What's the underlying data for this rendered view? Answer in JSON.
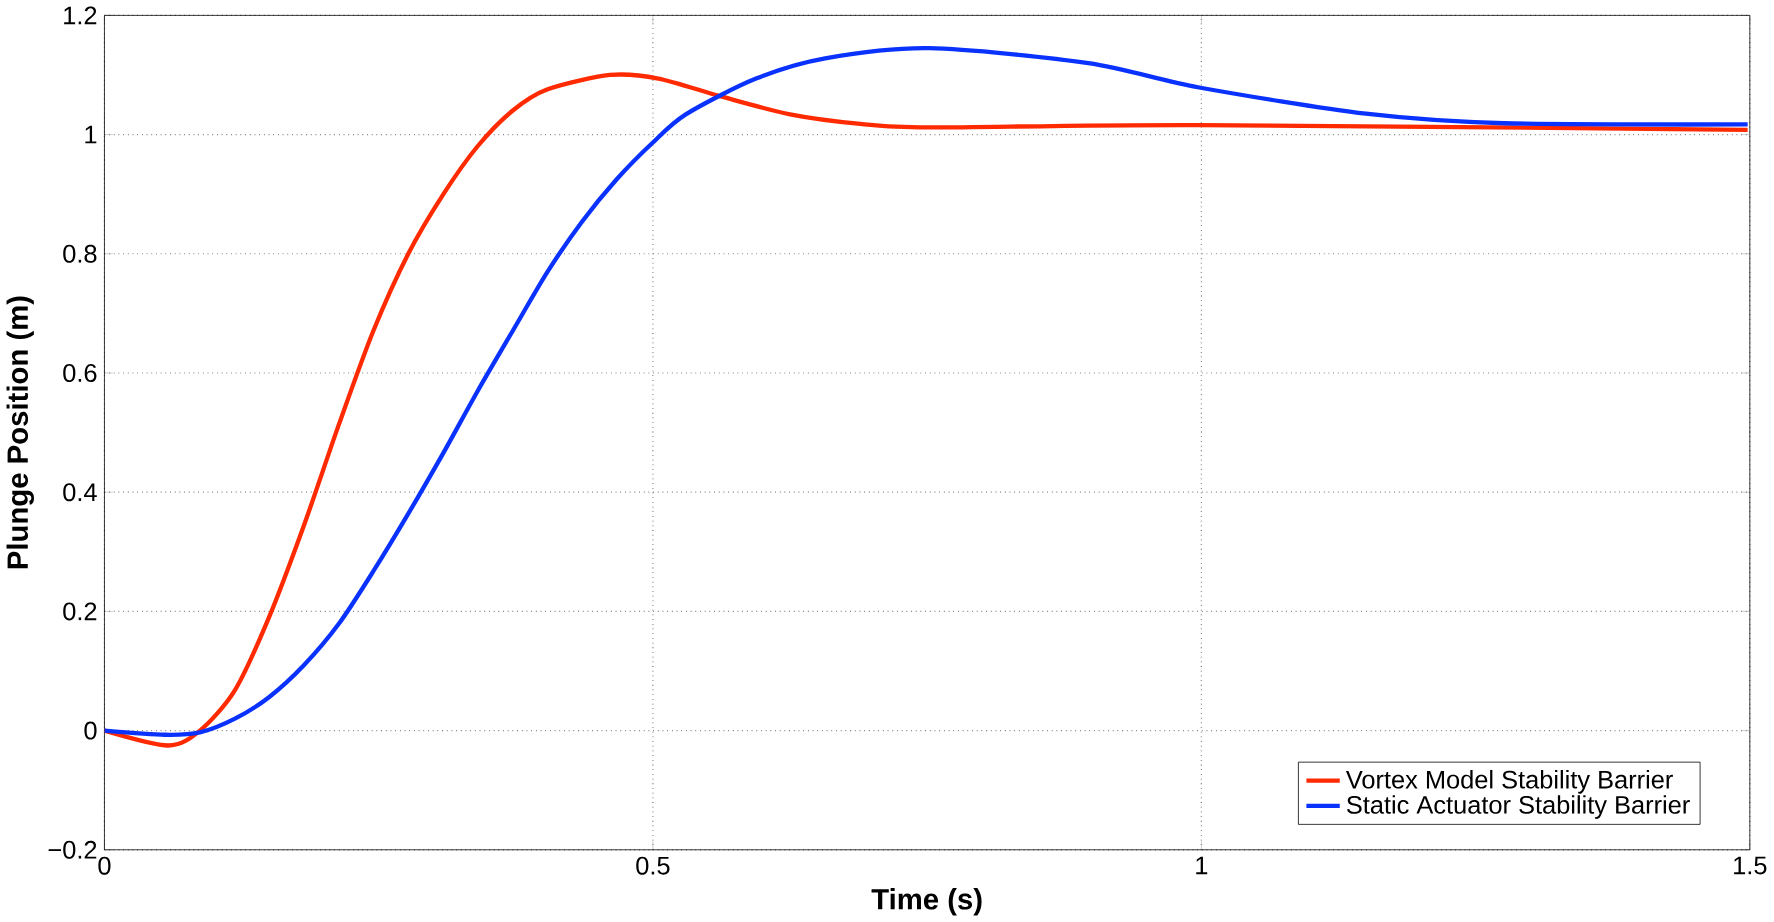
{
  "chart_data": {
    "type": "line",
    "xlabel": "Time (s)",
    "ylabel": "Plunge Position (m)",
    "xlim": [
      0,
      1.5
    ],
    "ylim": [
      -0.2,
      1.2
    ],
    "xticks": [
      0,
      0.5,
      1,
      1.5
    ],
    "yticks": [
      {
        "value": -0.2,
        "label": "−0.2"
      },
      0,
      0.2,
      0.4,
      0.6,
      0.8,
      1,
      1.2
    ],
    "grid": true,
    "legend": "bottom right",
    "line_style": "solid",
    "marker": "none",
    "series": [
      {
        "name": "Vortex Model Stability Barrier",
        "color": "#ff2a00",
        "x": [
          0,
          0.058,
          0.087,
          0.119,
          0.15,
          0.182,
          0.214,
          0.245,
          0.277,
          0.309,
          0.34,
          0.372,
          0.404,
          0.461,
          0.505,
          0.562,
          0.625,
          0.689,
          0.752,
          0.998,
          1.498
        ],
        "values": [
          0,
          -0.025,
          0,
          0.068,
          0.19,
          0.345,
          0.515,
          0.67,
          0.8,
          0.9,
          0.98,
          1.04,
          1.076,
          1.1,
          1.094,
          1.064,
          1.034,
          1.018,
          1.012,
          1.016,
          1.008
        ]
      },
      {
        "name": "Static Actuator Stability Barrier",
        "color": "#0a32ff",
        "x": [
          0,
          0.055,
          0.087,
          0.119,
          0.15,
          0.182,
          0.214,
          0.245,
          0.277,
          0.309,
          0.34,
          0.372,
          0.404,
          0.435,
          0.467,
          0.499,
          0.53,
          0.594,
          0.657,
          0.752,
          0.897,
          0.998,
          1.15,
          1.276,
          1.498
        ],
        "values": [
          0,
          -0.007,
          -0.003,
          0.02,
          0.056,
          0.11,
          0.18,
          0.267,
          0.364,
          0.466,
          0.569,
          0.67,
          0.77,
          0.853,
          0.925,
          0.985,
          1.034,
          1.094,
          1.128,
          1.145,
          1.12,
          1.079,
          1.035,
          1.019,
          1.017
        ]
      }
    ]
  }
}
